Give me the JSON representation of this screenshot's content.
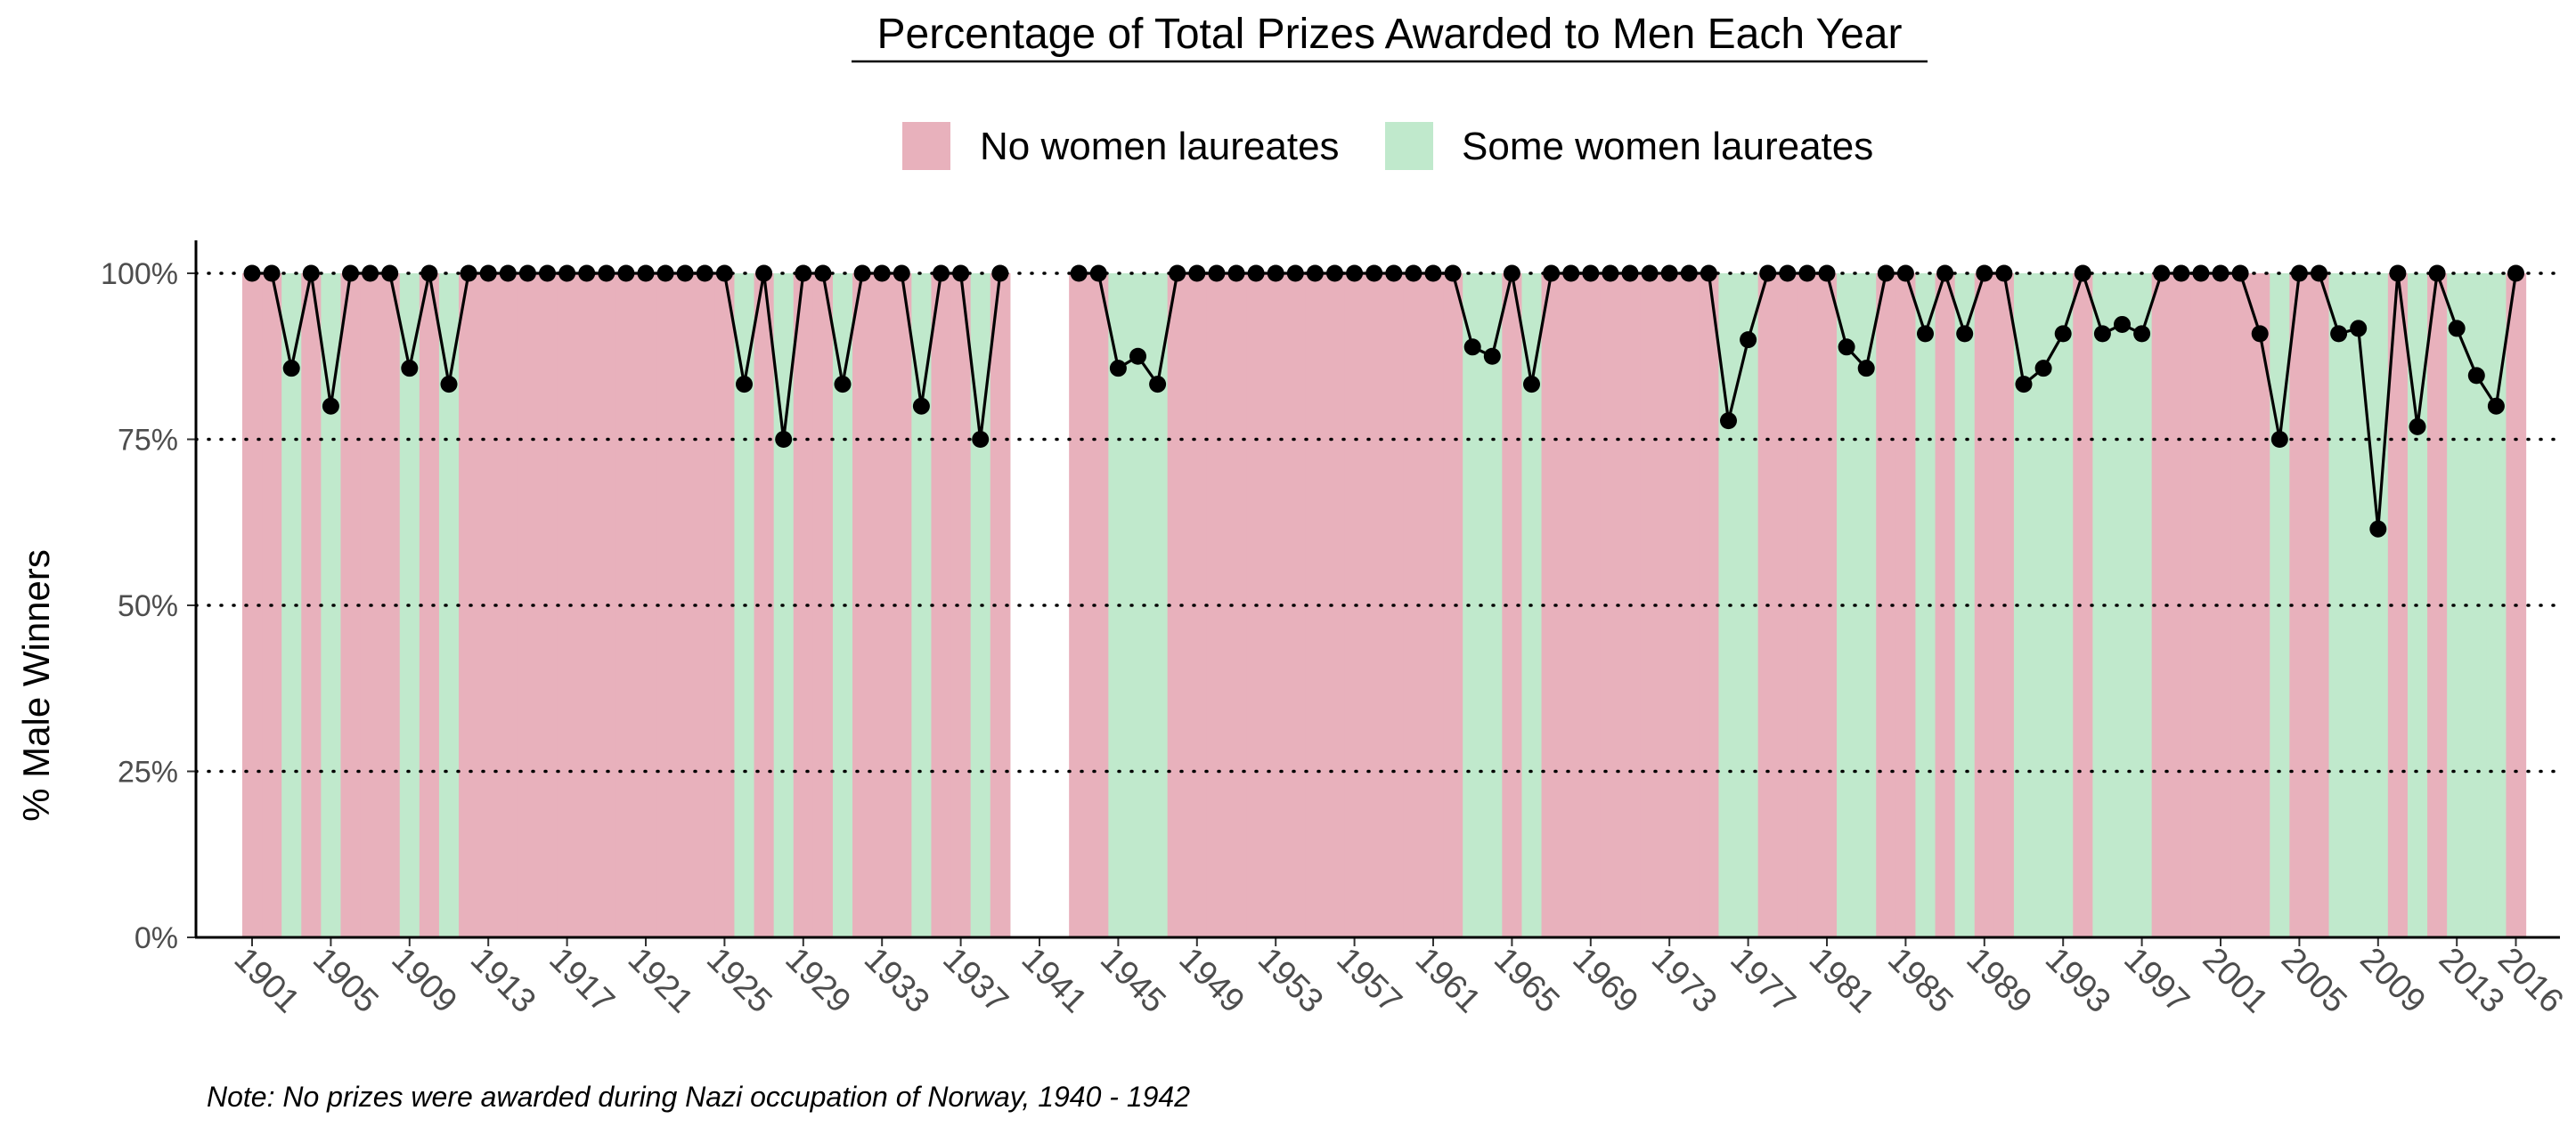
{
  "chart_data": {
    "type": "line",
    "title": "Percentage of Total Prizes Awarded to Men Each Year",
    "ylabel": "% Male Winners",
    "xlabel": "",
    "ylim": [
      0,
      1
    ],
    "y_ticks": [
      "0%",
      "25%",
      "50%",
      "75%",
      "100%"
    ],
    "x_ticks": [
      "1901",
      "1905",
      "1909",
      "1913",
      "1917",
      "1921",
      "1925",
      "1929",
      "1933",
      "1937",
      "1941",
      "1945",
      "1949",
      "1953",
      "1957",
      "1961",
      "1965",
      "1969",
      "1973",
      "1977",
      "1981",
      "1985",
      "1989",
      "1993",
      "1997",
      "2001",
      "2005",
      "2009",
      "2013",
      "2016"
    ],
    "grid": "horizontal dotted",
    "legend_position": "top",
    "legend": [
      {
        "label": "No women laureates",
        "color": "#E8B1BC"
      },
      {
        "label": "Some women laureates",
        "color": "#C0E9CC"
      }
    ],
    "line_color": "#000000",
    "point_color": "#000000",
    "note": "Note: No prizes were awarded during Nazi occupation of Norway, 1940 - 1942",
    "x": [
      1901,
      1902,
      1903,
      1904,
      1905,
      1906,
      1907,
      1908,
      1909,
      1910,
      1911,
      1912,
      1913,
      1914,
      1915,
      1916,
      1917,
      1918,
      1919,
      1920,
      1921,
      1922,
      1923,
      1924,
      1925,
      1926,
      1927,
      1928,
      1929,
      1930,
      1931,
      1932,
      1933,
      1934,
      1935,
      1936,
      1937,
      1938,
      1939,
      1943,
      1944,
      1945,
      1946,
      1947,
      1948,
      1949,
      1950,
      1951,
      1952,
      1953,
      1954,
      1955,
      1956,
      1957,
      1958,
      1959,
      1960,
      1961,
      1962,
      1963,
      1964,
      1965,
      1966,
      1967,
      1968,
      1969,
      1970,
      1971,
      1972,
      1973,
      1974,
      1975,
      1976,
      1977,
      1978,
      1979,
      1980,
      1981,
      1982,
      1983,
      1984,
      1985,
      1986,
      1987,
      1988,
      1989,
      1990,
      1991,
      1992,
      1993,
      1994,
      1995,
      1996,
      1997,
      1998,
      1999,
      2000,
      2001,
      2002,
      2003,
      2004,
      2005,
      2006,
      2007,
      2008,
      2009,
      2010,
      2011,
      2012,
      2013,
      2014,
      2015,
      2016
    ],
    "values": [
      1,
      1,
      0.857,
      1,
      0.8,
      1,
      1,
      1,
      0.857,
      1,
      0.833,
      1,
      1,
      1,
      1,
      1,
      1,
      1,
      1,
      1,
      1,
      1,
      1,
      1,
      1,
      0.833,
      1,
      0.75,
      1,
      1,
      0.833,
      1,
      1,
      1,
      0.8,
      1,
      1,
      0.75,
      1,
      1,
      1,
      0.857,
      0.875,
      0.833,
      1,
      1,
      1,
      1,
      1,
      1,
      1,
      1,
      1,
      1,
      1,
      1,
      1,
      1,
      1,
      0.889,
      0.875,
      1,
      0.833,
      1,
      1,
      1,
      1,
      1,
      1,
      1,
      1,
      1,
      0.778,
      0.9,
      1,
      1,
      1,
      1,
      0.889,
      0.857,
      1,
      1,
      0.909,
      1,
      0.909,
      1,
      1,
      0.833,
      0.857,
      0.909,
      1,
      0.909,
      0.923,
      0.909,
      1,
      1,
      1,
      1,
      1,
      0.909,
      0.75,
      1,
      1,
      0.909,
      0.917,
      0.615,
      1,
      0.769,
      1,
      0.917,
      0.846,
      0.8,
      1
    ],
    "women_laureate_years": [
      1903,
      1905,
      1909,
      1911,
      1926,
      1928,
      1931,
      1935,
      1938,
      1945,
      1946,
      1947,
      1963,
      1964,
      1966,
      1976,
      1977,
      1982,
      1983,
      1986,
      1988,
      1991,
      1992,
      1993,
      1995,
      1996,
      1997,
      2004,
      2007,
      2008,
      2009,
      2011,
      2013,
      2014,
      2015
    ]
  }
}
